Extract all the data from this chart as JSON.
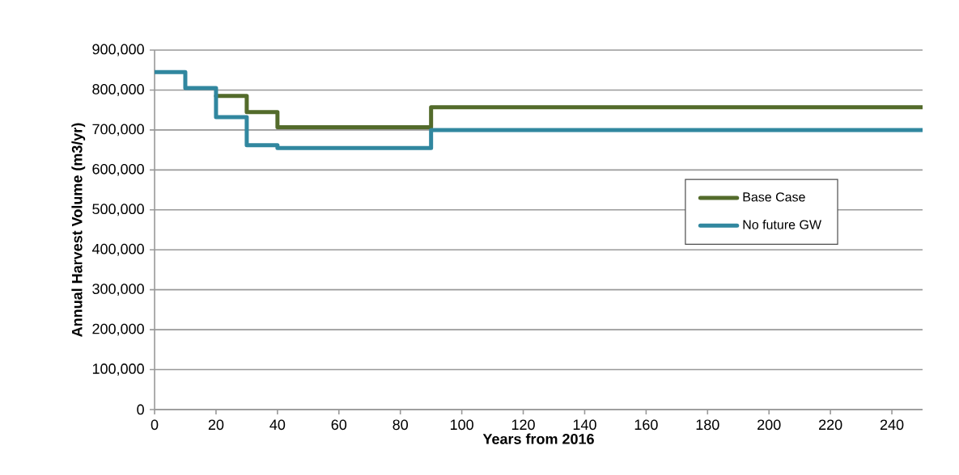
{
  "chart_data": {
    "type": "step",
    "xlabel": "Years from 2016",
    "ylabel": "Annual Harvest Volume (m3/yr)",
    "x": [
      0,
      10,
      20,
      30,
      40,
      50,
      90,
      250
    ],
    "series": [
      {
        "name": "Base Case",
        "color": "#536b2b",
        "values": [
          null,
          null,
          785000,
          745000,
          707000,
          707000,
          757000,
          757000
        ]
      },
      {
        "name": "No future GW",
        "color": "#31879f",
        "values": [
          845000,
          805000,
          732000,
          662000,
          655000,
          655000,
          700000,
          700000
        ]
      }
    ],
    "xlim": [
      0,
      250
    ],
    "xticks": [
      0,
      20,
      40,
      60,
      80,
      100,
      120,
      140,
      160,
      180,
      200,
      220,
      240
    ],
    "ylim": [
      0,
      900000
    ],
    "yticks": [
      0,
      {
        "value": 100000,
        "label": "100,000"
      },
      {
        "value": 200000,
        "label": "200,000"
      },
      {
        "value": 300000,
        "label": "300,000"
      },
      {
        "value": 400000,
        "label": "400,000"
      },
      {
        "value": 500000,
        "label": "500,000"
      },
      {
        "value": 600000,
        "label": "600,000"
      },
      {
        "value": 700000,
        "label": "700,000"
      },
      {
        "value": 800000,
        "label": "800,000"
      },
      {
        "value": 900000,
        "label": "900,000"
      }
    ],
    "grid": "y",
    "legend": "right",
    "marker": "none",
    "line_style": "solid"
  }
}
